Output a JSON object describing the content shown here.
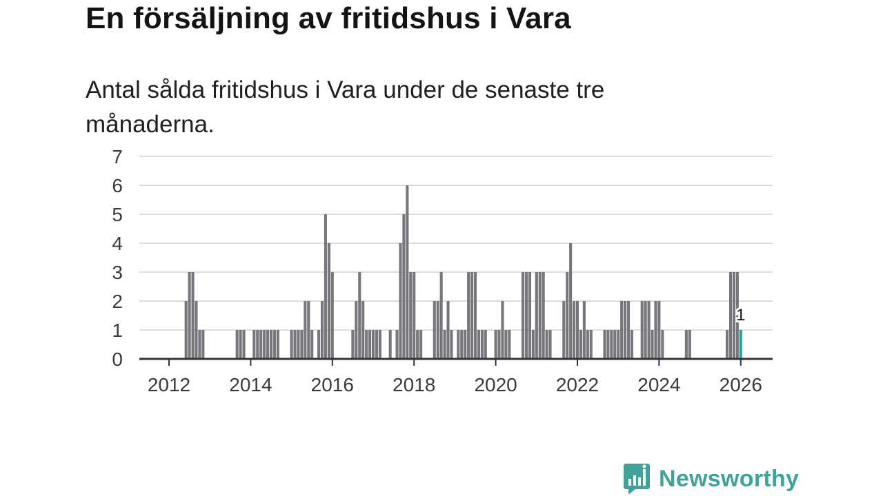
{
  "title": "En försäljning av fritidshus i Vara",
  "subtitle": "Antal sålda fritidshus i Vara under de senaste tre månaderna.",
  "brand": {
    "name": "Newsworthy"
  },
  "colors": {
    "bar": "#76767c",
    "highlight": "#2aa198",
    "grid": "#dddddd",
    "axis": "#333333",
    "brand": "#3fa39b"
  },
  "chart_data": {
    "type": "bar",
    "title": "En försäljning av fritidshus i Vara",
    "subtitle": "Antal sålda fritidshus i Vara under de senaste tre månaderna.",
    "xlabel": "",
    "ylabel": "",
    "ylim": [
      0,
      7
    ],
    "yticks": [
      0,
      1,
      2,
      3,
      4,
      5,
      6,
      7
    ],
    "xticks": [
      "2012",
      "2014",
      "2016",
      "2018",
      "2020",
      "2022",
      "2024",
      "2026"
    ],
    "x_start": "2011-01",
    "x_end": "2026-01",
    "grid": true,
    "highlight": {
      "date": "2026-01",
      "value": 1,
      "label": "1"
    },
    "series": [
      {
        "values": [
          [
            "2012-06",
            2
          ],
          [
            "2012-07",
            3
          ],
          [
            "2012-08",
            3
          ],
          [
            "2012-09",
            2
          ],
          [
            "2012-10",
            1
          ],
          [
            "2012-11",
            1
          ],
          [
            "2013-09",
            1
          ],
          [
            "2013-10",
            1
          ],
          [
            "2013-11",
            1
          ],
          [
            "2014-02",
            1
          ],
          [
            "2014-03",
            1
          ],
          [
            "2014-04",
            1
          ],
          [
            "2014-05",
            1
          ],
          [
            "2014-06",
            1
          ],
          [
            "2014-07",
            1
          ],
          [
            "2014-08",
            1
          ],
          [
            "2014-09",
            1
          ],
          [
            "2015-01",
            1
          ],
          [
            "2015-02",
            1
          ],
          [
            "2015-03",
            1
          ],
          [
            "2015-04",
            1
          ],
          [
            "2015-05",
            2
          ],
          [
            "2015-06",
            2
          ],
          [
            "2015-07",
            1
          ],
          [
            "2015-09",
            1
          ],
          [
            "2015-10",
            2
          ],
          [
            "2015-11",
            5
          ],
          [
            "2015-12",
            4
          ],
          [
            "2016-01",
            3
          ],
          [
            "2016-07",
            1
          ],
          [
            "2016-08",
            2
          ],
          [
            "2016-09",
            3
          ],
          [
            "2016-10",
            2
          ],
          [
            "2016-11",
            1
          ],
          [
            "2016-12",
            1
          ],
          [
            "2017-01",
            1
          ],
          [
            "2017-02",
            1
          ],
          [
            "2017-03",
            1
          ],
          [
            "2017-06",
            1
          ],
          [
            "2017-08",
            1
          ],
          [
            "2017-09",
            4
          ],
          [
            "2017-10",
            5
          ],
          [
            "2017-11",
            6
          ],
          [
            "2017-12",
            3
          ],
          [
            "2018-01",
            3
          ],
          [
            "2018-02",
            1
          ],
          [
            "2018-03",
            1
          ],
          [
            "2018-07",
            2
          ],
          [
            "2018-08",
            2
          ],
          [
            "2018-09",
            3
          ],
          [
            "2018-10",
            1
          ],
          [
            "2018-11",
            2
          ],
          [
            "2018-12",
            1
          ],
          [
            "2019-02",
            1
          ],
          [
            "2019-03",
            1
          ],
          [
            "2019-04",
            1
          ],
          [
            "2019-05",
            3
          ],
          [
            "2019-06",
            3
          ],
          [
            "2019-07",
            3
          ],
          [
            "2019-08",
            1
          ],
          [
            "2019-09",
            1
          ],
          [
            "2019-10",
            1
          ],
          [
            "2020-01",
            1
          ],
          [
            "2020-02",
            1
          ],
          [
            "2020-03",
            2
          ],
          [
            "2020-04",
            1
          ],
          [
            "2020-05",
            1
          ],
          [
            "2020-09",
            3
          ],
          [
            "2020-10",
            3
          ],
          [
            "2020-11",
            3
          ],
          [
            "2020-12",
            1
          ],
          [
            "2021-01",
            3
          ],
          [
            "2021-02",
            3
          ],
          [
            "2021-03",
            3
          ],
          [
            "2021-04",
            1
          ],
          [
            "2021-05",
            1
          ],
          [
            "2021-09",
            2
          ],
          [
            "2021-10",
            3
          ],
          [
            "2021-11",
            4
          ],
          [
            "2021-12",
            2
          ],
          [
            "2022-01",
            2
          ],
          [
            "2022-02",
            1
          ],
          [
            "2022-03",
            2
          ],
          [
            "2022-04",
            1
          ],
          [
            "2022-05",
            1
          ],
          [
            "2022-09",
            1
          ],
          [
            "2022-10",
            1
          ],
          [
            "2022-11",
            1
          ],
          [
            "2022-12",
            1
          ],
          [
            "2023-01",
            1
          ],
          [
            "2023-02",
            2
          ],
          [
            "2023-03",
            2
          ],
          [
            "2023-04",
            2
          ],
          [
            "2023-05",
            1
          ],
          [
            "2023-08",
            2
          ],
          [
            "2023-09",
            2
          ],
          [
            "2023-10",
            2
          ],
          [
            "2023-11",
            1
          ],
          [
            "2023-12",
            2
          ],
          [
            "2024-01",
            2
          ],
          [
            "2024-02",
            1
          ],
          [
            "2024-09",
            1
          ],
          [
            "2024-10",
            1
          ],
          [
            "2025-09",
            1
          ],
          [
            "2025-10",
            3
          ],
          [
            "2025-11",
            3
          ],
          [
            "2025-12",
            3
          ],
          [
            "2026-01",
            1
          ]
        ]
      }
    ]
  }
}
